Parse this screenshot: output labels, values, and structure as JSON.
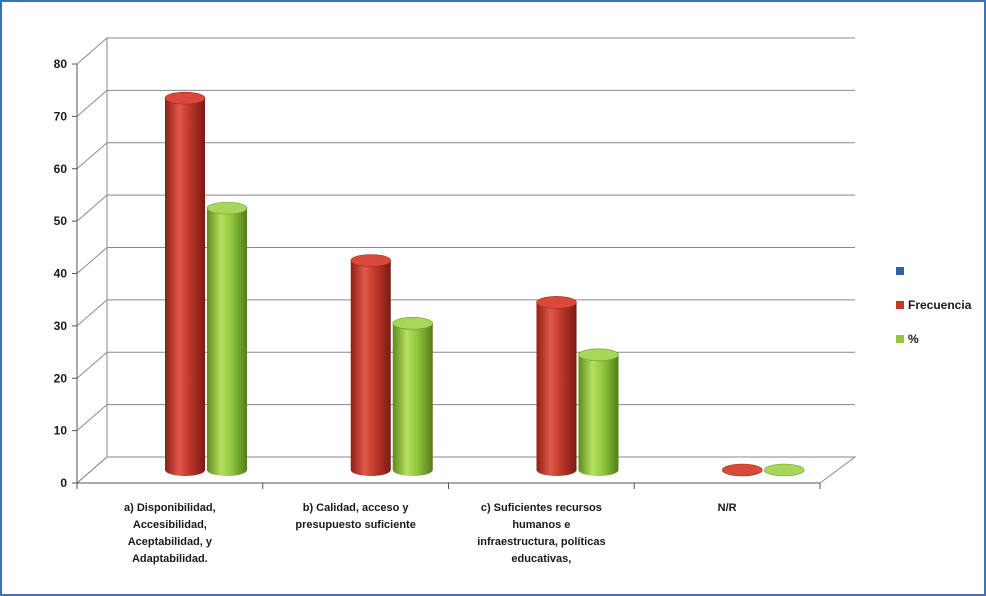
{
  "colors": {
    "frame_border": "#3f6fb5",
    "grid": "#8a8a8a",
    "series_blank": "#2f5fb0",
    "series_frecuencia": "#c0392b",
    "series_percent": "#92c83e"
  },
  "chart_data": {
    "type": "bar",
    "title": "",
    "xlabel": "",
    "ylabel": "",
    "ylim": [
      0,
      80
    ],
    "yticks": [
      "0",
      "10",
      "20",
      "30",
      "40",
      "50",
      "60",
      "70",
      "80"
    ],
    "grid": true,
    "legend_position": "right",
    "style": "3d-cylinder",
    "categories": [
      [
        "a)     Disponibilidad,",
        "Accesibilidad,",
        "Aceptabilidad, y",
        "Adaptabilidad."
      ],
      [
        "b)     Calidad, acceso y",
        "presupuesto suficiente"
      ],
      [
        "c)   Suficientes recursos",
        "humanos e",
        "infraestructura, políticas",
        "educativas,"
      ],
      [
        "N/R"
      ]
    ],
    "series": [
      {
        "name": "",
        "values": [
          0,
          0,
          0,
          0
        ],
        "color": "#2f5fb0"
      },
      {
        "name": "Frecuencia",
        "values": [
          71,
          40,
          32,
          0
        ],
        "color": "#c0392b"
      },
      {
        "name": "%",
        "values": [
          50,
          28,
          22,
          0
        ],
        "color": "#92c83e"
      }
    ]
  }
}
